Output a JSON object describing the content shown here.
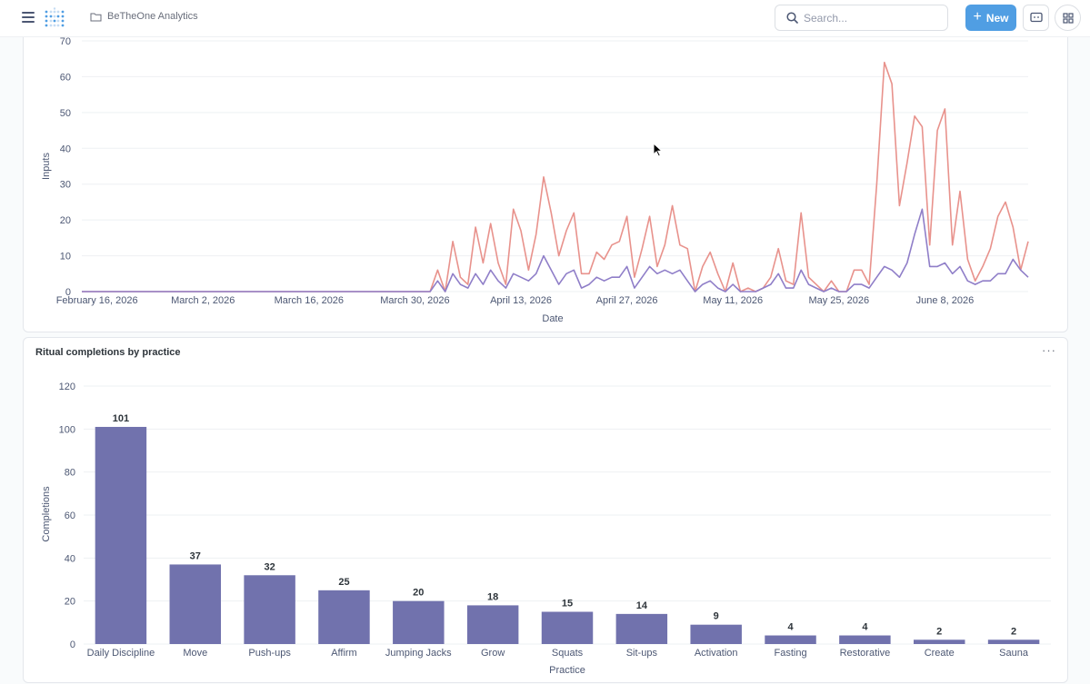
{
  "nav": {
    "breadcrumb": "BeTheOne Analytics",
    "search_placeholder": "Search...",
    "new_label": "New"
  },
  "colors": {
    "accent": "#509ee3",
    "series_pink": "#e8928c",
    "series_purple": "#8f7ec8",
    "bar": "#7172ad"
  },
  "line_chart": {
    "ylabel": "Inputs",
    "xlabel": "Date"
  },
  "bar_chart": {
    "title": "Ritual completions by practice",
    "ylabel": "Completions",
    "xlabel": "Practice"
  },
  "chart_data": [
    {
      "type": "line",
      "ylabel": "Inputs",
      "xlabel": "Date",
      "ylim": [
        0,
        70
      ],
      "yticks": [
        0,
        10,
        20,
        30,
        40,
        50,
        60,
        70
      ],
      "xticks": [
        {
          "date": "2026-02-16",
          "label": "February 16, 2026"
        },
        {
          "date": "2026-03-02",
          "label": "March 2, 2026"
        },
        {
          "date": "2026-03-16",
          "label": "March 16, 2026"
        },
        {
          "date": "2026-03-30",
          "label": "March 30, 2026"
        },
        {
          "date": "2026-04-13",
          "label": "April 13, 2026"
        },
        {
          "date": "2026-04-27",
          "label": "April 27, 2026"
        },
        {
          "date": "2026-05-11",
          "label": "May 11, 2026"
        },
        {
          "date": "2026-05-25",
          "label": "May 25, 2026"
        },
        {
          "date": "2026-06-08",
          "label": "June 8, 2026"
        }
      ],
      "series": [
        {
          "color": "#e8928c",
          "points": [
            [
              "2026-02-14",
              0
            ],
            [
              "2026-04-01",
              0
            ],
            [
              "2026-04-02",
              6
            ],
            [
              "2026-04-03",
              0
            ],
            [
              "2026-04-04",
              14
            ],
            [
              "2026-04-05",
              4
            ],
            [
              "2026-04-06",
              2
            ],
            [
              "2026-04-07",
              18
            ],
            [
              "2026-04-08",
              8
            ],
            [
              "2026-04-09",
              19
            ],
            [
              "2026-04-10",
              8
            ],
            [
              "2026-04-11",
              2
            ],
            [
              "2026-04-12",
              23
            ],
            [
              "2026-04-13",
              17
            ],
            [
              "2026-04-14",
              6
            ],
            [
              "2026-04-15",
              16
            ],
            [
              "2026-04-16",
              32
            ],
            [
              "2026-04-17",
              22
            ],
            [
              "2026-04-18",
              10
            ],
            [
              "2026-04-19",
              17
            ],
            [
              "2026-04-20",
              22
            ],
            [
              "2026-04-21",
              5
            ],
            [
              "2026-04-22",
              5
            ],
            [
              "2026-04-23",
              11
            ],
            [
              "2026-04-24",
              9
            ],
            [
              "2026-04-25",
              13
            ],
            [
              "2026-04-26",
              14
            ],
            [
              "2026-04-27",
              21
            ],
            [
              "2026-04-28",
              4
            ],
            [
              "2026-04-29",
              12
            ],
            [
              "2026-04-30",
              21
            ],
            [
              "2026-05-01",
              7
            ],
            [
              "2026-05-02",
              13
            ],
            [
              "2026-05-03",
              24
            ],
            [
              "2026-05-04",
              13
            ],
            [
              "2026-05-05",
              12
            ],
            [
              "2026-05-06",
              0
            ],
            [
              "2026-05-07",
              7
            ],
            [
              "2026-05-08",
              11
            ],
            [
              "2026-05-09",
              5
            ],
            [
              "2026-05-10",
              0
            ],
            [
              "2026-05-11",
              8
            ],
            [
              "2026-05-12",
              0
            ],
            [
              "2026-05-13",
              1
            ],
            [
              "2026-05-14",
              0
            ],
            [
              "2026-05-15",
              1
            ],
            [
              "2026-05-16",
              4
            ],
            [
              "2026-05-17",
              12
            ],
            [
              "2026-05-18",
              3
            ],
            [
              "2026-05-19",
              2
            ],
            [
              "2026-05-20",
              22
            ],
            [
              "2026-05-21",
              4
            ],
            [
              "2026-05-22",
              2
            ],
            [
              "2026-05-23",
              0
            ],
            [
              "2026-05-24",
              3
            ],
            [
              "2026-05-25",
              0
            ],
            [
              "2026-05-26",
              0
            ],
            [
              "2026-05-27",
              6
            ],
            [
              "2026-05-28",
              6
            ],
            [
              "2026-05-29",
              2
            ],
            [
              "2026-05-30",
              30
            ],
            [
              "2026-05-31",
              64
            ],
            [
              "2026-06-01",
              58
            ],
            [
              "2026-06-02",
              24
            ],
            [
              "2026-06-03",
              36
            ],
            [
              "2026-06-04",
              49
            ],
            [
              "2026-06-05",
              46
            ],
            [
              "2026-06-06",
              13
            ],
            [
              "2026-06-07",
              45
            ],
            [
              "2026-06-08",
              51
            ],
            [
              "2026-06-09",
              13
            ],
            [
              "2026-06-10",
              28
            ],
            [
              "2026-06-11",
              9
            ],
            [
              "2026-06-12",
              3
            ],
            [
              "2026-06-13",
              7
            ],
            [
              "2026-06-14",
              12
            ],
            [
              "2026-06-15",
              21
            ],
            [
              "2026-06-16",
              25
            ],
            [
              "2026-06-17",
              18
            ],
            [
              "2026-06-18",
              6
            ],
            [
              "2026-06-19",
              14
            ]
          ]
        },
        {
          "color": "#8f7ec8",
          "points": [
            [
              "2026-02-14",
              0
            ],
            [
              "2026-04-01",
              0
            ],
            [
              "2026-04-02",
              3
            ],
            [
              "2026-04-03",
              0
            ],
            [
              "2026-04-04",
              5
            ],
            [
              "2026-04-05",
              2
            ],
            [
              "2026-04-06",
              1
            ],
            [
              "2026-04-07",
              5
            ],
            [
              "2026-04-08",
              2
            ],
            [
              "2026-04-09",
              6
            ],
            [
              "2026-04-10",
              3
            ],
            [
              "2026-04-11",
              1
            ],
            [
              "2026-04-12",
              5
            ],
            [
              "2026-04-13",
              4
            ],
            [
              "2026-04-14",
              3
            ],
            [
              "2026-04-15",
              5
            ],
            [
              "2026-04-16",
              10
            ],
            [
              "2026-04-17",
              6
            ],
            [
              "2026-04-18",
              2
            ],
            [
              "2026-04-19",
              5
            ],
            [
              "2026-04-20",
              6
            ],
            [
              "2026-04-21",
              1
            ],
            [
              "2026-04-22",
              2
            ],
            [
              "2026-04-23",
              4
            ],
            [
              "2026-04-24",
              3
            ],
            [
              "2026-04-25",
              4
            ],
            [
              "2026-04-26",
              4
            ],
            [
              "2026-04-27",
              7
            ],
            [
              "2026-04-28",
              1
            ],
            [
              "2026-04-29",
              4
            ],
            [
              "2026-04-30",
              7
            ],
            [
              "2026-05-01",
              5
            ],
            [
              "2026-05-02",
              6
            ],
            [
              "2026-05-03",
              5
            ],
            [
              "2026-05-04",
              6
            ],
            [
              "2026-05-05",
              3
            ],
            [
              "2026-05-06",
              0
            ],
            [
              "2026-05-07",
              2
            ],
            [
              "2026-05-08",
              3
            ],
            [
              "2026-05-09",
              1
            ],
            [
              "2026-05-10",
              0
            ],
            [
              "2026-05-11",
              2
            ],
            [
              "2026-05-12",
              0
            ],
            [
              "2026-05-13",
              0
            ],
            [
              "2026-05-14",
              0
            ],
            [
              "2026-05-15",
              1
            ],
            [
              "2026-05-16",
              2
            ],
            [
              "2026-05-17",
              5
            ],
            [
              "2026-05-18",
              1
            ],
            [
              "2026-05-19",
              1
            ],
            [
              "2026-05-20",
              6
            ],
            [
              "2026-05-21",
              2
            ],
            [
              "2026-05-22",
              1
            ],
            [
              "2026-05-23",
              0
            ],
            [
              "2026-05-24",
              1
            ],
            [
              "2026-05-25",
              0
            ],
            [
              "2026-05-26",
              0
            ],
            [
              "2026-05-27",
              2
            ],
            [
              "2026-05-28",
              2
            ],
            [
              "2026-05-29",
              1
            ],
            [
              "2026-05-30",
              4
            ],
            [
              "2026-05-31",
              7
            ],
            [
              "2026-06-01",
              6
            ],
            [
              "2026-06-02",
              4
            ],
            [
              "2026-06-03",
              8
            ],
            [
              "2026-06-04",
              16
            ],
            [
              "2026-06-05",
              23
            ],
            [
              "2026-06-06",
              7
            ],
            [
              "2026-06-07",
              7
            ],
            [
              "2026-06-08",
              8
            ],
            [
              "2026-06-09",
              5
            ],
            [
              "2026-06-10",
              7
            ],
            [
              "2026-06-11",
              3
            ],
            [
              "2026-06-12",
              2
            ],
            [
              "2026-06-13",
              3
            ],
            [
              "2026-06-14",
              3
            ],
            [
              "2026-06-15",
              5
            ],
            [
              "2026-06-16",
              5
            ],
            [
              "2026-06-17",
              9
            ],
            [
              "2026-06-18",
              6
            ],
            [
              "2026-06-19",
              4
            ]
          ]
        }
      ]
    },
    {
      "type": "bar",
      "title": "Ritual completions by practice",
      "ylabel": "Completions",
      "xlabel": "Practice",
      "ylim": [
        0,
        120
      ],
      "yticks": [
        0,
        20,
        40,
        60,
        80,
        100,
        120
      ],
      "categories": [
        "Daily Discipline",
        "Move",
        "Push-ups",
        "Affirm",
        "Jumping Jacks",
        "Grow",
        "Squats",
        "Sit-ups",
        "Activation",
        "Fasting",
        "Restorative",
        "Create",
        "Sauna"
      ],
      "values": [
        101,
        37,
        32,
        25,
        20,
        18,
        15,
        14,
        9,
        4,
        4,
        2,
        2
      ],
      "data_labels": true
    }
  ]
}
